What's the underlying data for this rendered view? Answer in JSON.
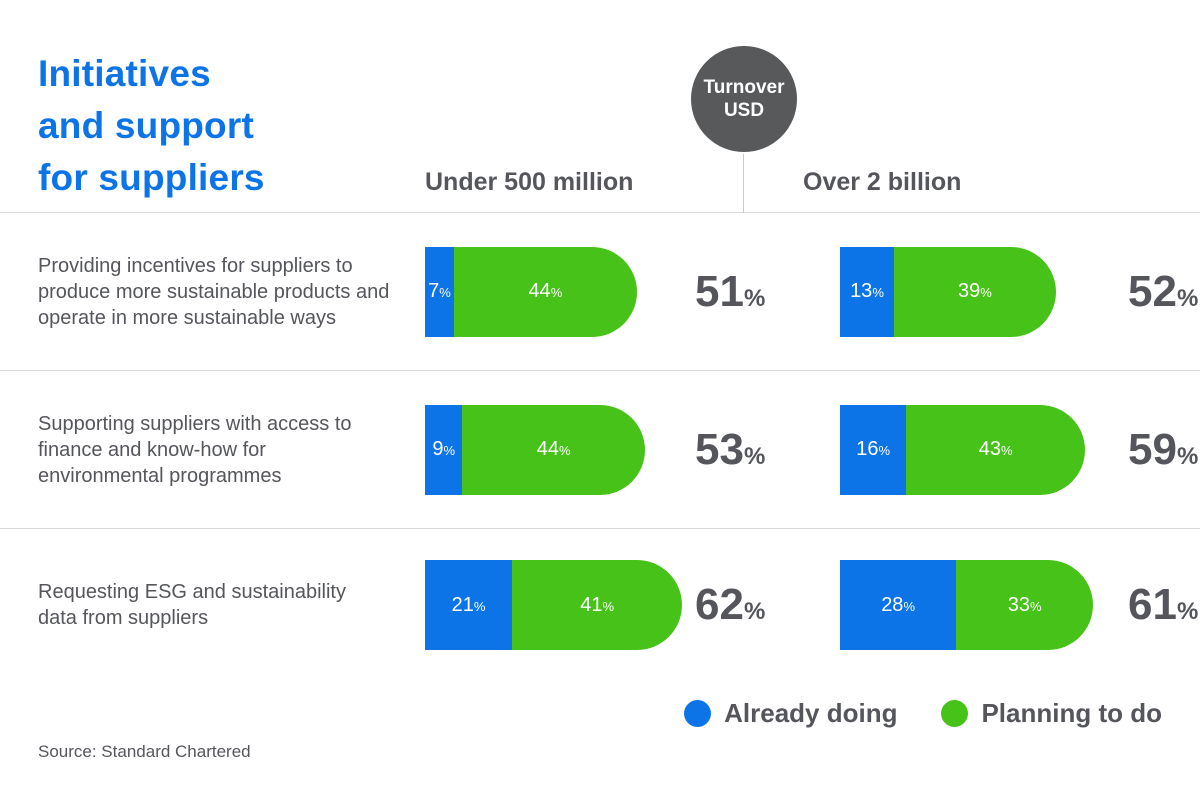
{
  "title": {
    "lines": [
      "Initiatives",
      "and support",
      "for suppliers"
    ]
  },
  "turnover_badge": {
    "line1": "Turnover",
    "line2": "USD"
  },
  "columns": {
    "left": "Under 500 million",
    "right": "Over 2 billion"
  },
  "units": {
    "percent": "%"
  },
  "legend": {
    "already": {
      "label": "Already doing"
    },
    "planning": {
      "label": "Planning to do"
    }
  },
  "source": "Source: Standard Chartered",
  "colors": {
    "already_blue": "#0d74e8",
    "planning_green": "#47c219",
    "title_blue": "#0d74e8",
    "badge_gray": "#58595b",
    "text_gray": "#54565b",
    "divider_gray": "#d9dadb"
  },
  "chart_data": {
    "type": "bar",
    "variant": "horizontal-stacked",
    "title": "Initiatives and support for suppliers",
    "group_header": "Turnover USD",
    "groups": [
      "Under 500 million",
      "Over 2 billion"
    ],
    "series_names": [
      "Already doing",
      "Planning to do"
    ],
    "unit": "%",
    "xlim": [
      0,
      100
    ],
    "legend_position": "bottom-right",
    "rows": [
      {
        "label": "Providing incentives for suppliers to produce more sustainable products and operate in more sustainable ways",
        "under_500m": {
          "already": 7,
          "planning": 44,
          "total": 51
        },
        "over_2b": {
          "already": 13,
          "planning": 39,
          "total": 52
        }
      },
      {
        "label": "Supporting suppliers with access to finance and know-how for environmental programmes",
        "under_500m": {
          "already": 9,
          "planning": 44,
          "total": 53
        },
        "over_2b": {
          "already": 16,
          "planning": 43,
          "total": 59
        }
      },
      {
        "label": "Requesting ESG and sustainability data from suppliers",
        "under_500m": {
          "already": 21,
          "planning": 41,
          "total": 62
        },
        "over_2b": {
          "already": 28,
          "planning": 33,
          "total": 61
        }
      }
    ]
  }
}
